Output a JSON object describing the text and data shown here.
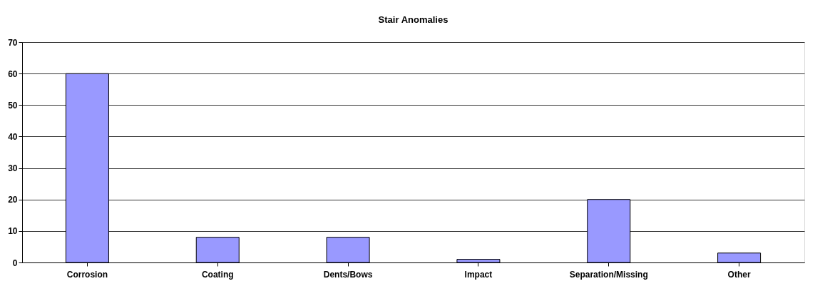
{
  "chart_data": {
    "type": "bar",
    "title": "Stair Anomalies",
    "categories": [
      "Corrosion",
      "Coating",
      "Dents/Bows",
      "Impact",
      "Separation/Missing",
      "Other"
    ],
    "values": [
      60,
      8,
      8,
      1,
      20,
      3
    ],
    "color": "#9999ff",
    "ylim": [
      0,
      70
    ],
    "yticks": [
      0,
      10,
      20,
      30,
      40,
      50,
      60,
      70
    ],
    "grid": "y"
  }
}
